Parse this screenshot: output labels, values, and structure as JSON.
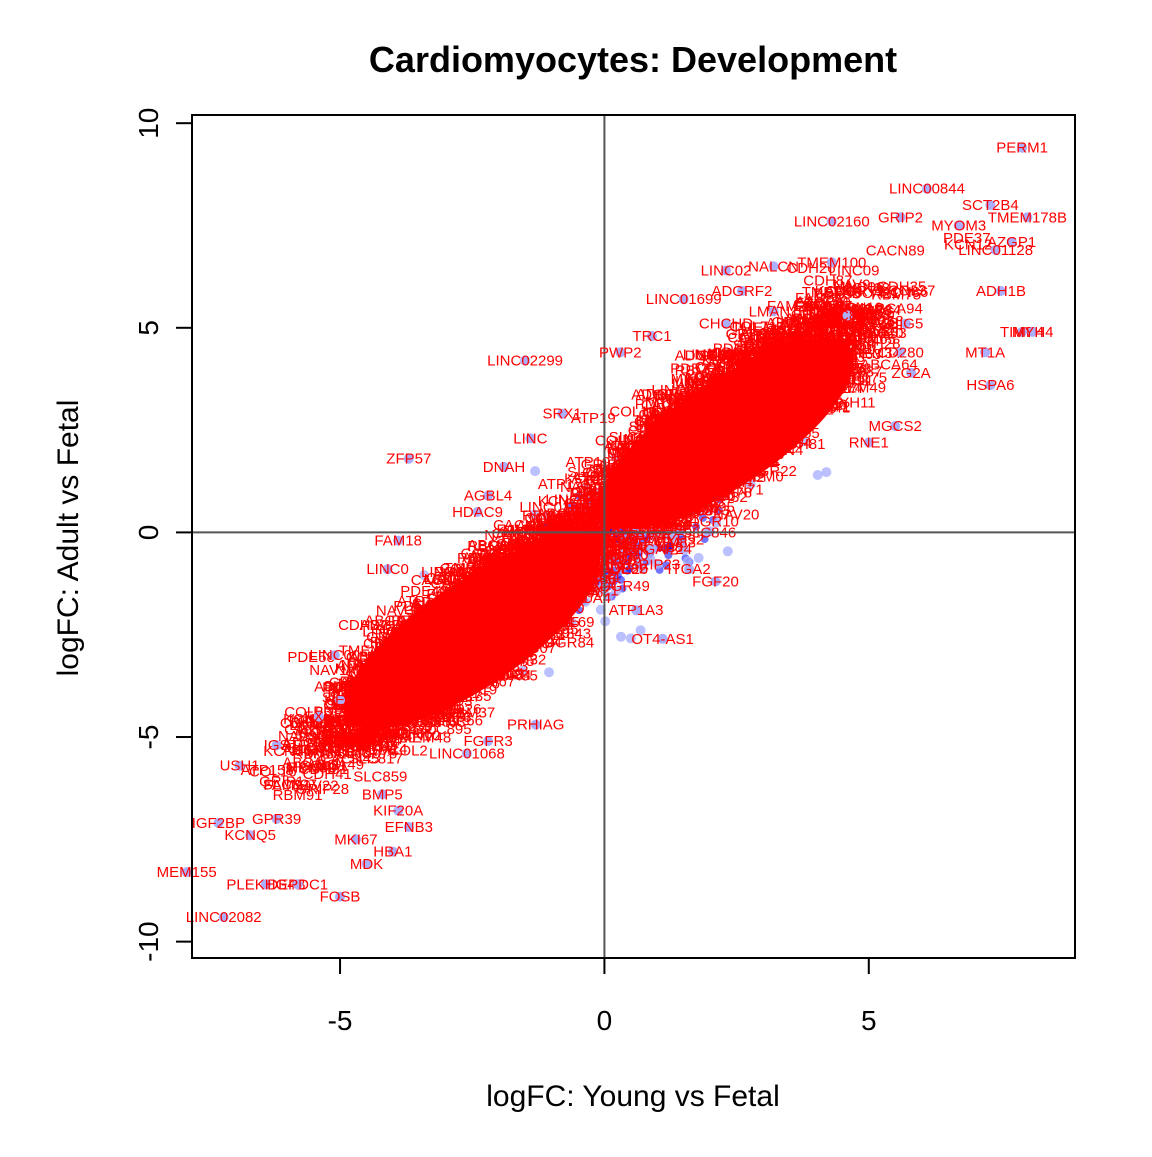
{
  "chart_data": {
    "type": "scatter",
    "title": "Cardiomyocytes: Development",
    "xlabel": "logFC: Young vs Fetal",
    "ylabel": "logFC: Adult vs Fetal",
    "xlim": [
      -7.8,
      8.9
    ],
    "ylim": [
      -10.4,
      10.2
    ],
    "x_ticks": [
      -5,
      0,
      5
    ],
    "x_tick_labels": [
      "-5",
      "0",
      "5"
    ],
    "y_ticks": [
      -10,
      -5,
      0,
      5,
      10
    ],
    "y_tick_labels": [
      "-10",
      "-5",
      "0",
      "5",
      "10"
    ],
    "reference_lines": {
      "x": 0,
      "y": 0
    },
    "grid": false,
    "colors": {
      "point": "#aab0ff",
      "point_dense": "#0000ff",
      "label": "#ff0000",
      "axis": "#000000",
      "refline": "#555555"
    },
    "labeled_points": [
      {
        "label": "PERM1",
        "x": 7.9,
        "y": 9.4
      },
      {
        "label": "LINC00844",
        "x": 6.1,
        "y": 8.4
      },
      {
        "label": "SCT2B4",
        "x": 7.3,
        "y": 8.0
      },
      {
        "label": "LINC02160",
        "x": 4.3,
        "y": 7.6
      },
      {
        "label": "GRIP2",
        "x": 5.6,
        "y": 7.7
      },
      {
        "label": "MYOM3",
        "x": 6.7,
        "y": 7.5
      },
      {
        "label": "TMEM178B",
        "x": 8.0,
        "y": 7.7
      },
      {
        "label": "AZGP1",
        "x": 7.7,
        "y": 7.1
      },
      {
        "label": "LINC01128",
        "x": 7.4,
        "y": 6.9
      },
      {
        "label": "LINC02",
        "x": 2.3,
        "y": 6.4
      },
      {
        "label": "NALCN",
        "x": 3.2,
        "y": 6.5
      },
      {
        "label": "TMEM100",
        "x": 4.3,
        "y": 6.6
      },
      {
        "label": "ADH1B",
        "x": 7.5,
        "y": 5.9
      },
      {
        "label": "ADGRF2",
        "x": 2.6,
        "y": 5.9
      },
      {
        "label": "LINC01699",
        "x": 1.5,
        "y": 5.7
      },
      {
        "label": "LMAN1",
        "x": 3.2,
        "y": 5.4
      },
      {
        "label": "CHCHD",
        "x": 2.3,
        "y": 5.1
      },
      {
        "label": "SLC8A1",
        "x": 4.6,
        "y": 5.3
      },
      {
        "label": "HIG5",
        "x": 5.7,
        "y": 5.1
      },
      {
        "label": "TIMP4",
        "x": 7.9,
        "y": 4.9
      },
      {
        "label": "MYH4",
        "x": 8.1,
        "y": 4.9
      },
      {
        "label": "TRC1",
        "x": 0.9,
        "y": 4.8
      },
      {
        "label": "PWP2",
        "x": 0.3,
        "y": 4.4
      },
      {
        "label": "LINC02299",
        "x": -1.5,
        "y": 4.2
      },
      {
        "label": "MT1A",
        "x": 7.2,
        "y": 4.4
      },
      {
        "label": "HSPA6",
        "x": 7.3,
        "y": 3.6
      },
      {
        "label": "CD280",
        "x": 5.6,
        "y": 4.4
      },
      {
        "label": "ZG2A",
        "x": 5.8,
        "y": 3.9
      },
      {
        "label": "MGCS2",
        "x": 5.5,
        "y": 2.6
      },
      {
        "label": "RNE1",
        "x": 5.0,
        "y": 2.2
      },
      {
        "label": "SRX1",
        "x": -0.8,
        "y": 2.9
      },
      {
        "label": "LINC",
        "x": -1.4,
        "y": 2.3
      },
      {
        "label": "ZFP57",
        "x": -3.7,
        "y": 1.8
      },
      {
        "label": "DNAH",
        "x": -1.9,
        "y": 1.6
      },
      {
        "label": "AGBL4",
        "x": -2.2,
        "y": 0.9
      },
      {
        "label": "HDAC9",
        "x": -2.4,
        "y": 0.5
      },
      {
        "label": "FAM18",
        "x": -3.9,
        "y": -0.2
      },
      {
        "label": "LINC0",
        "x": -4.1,
        "y": -0.9
      },
      {
        "label": "ARHGAP24",
        "x": 0.9,
        "y": -0.4
      },
      {
        "label": "ITGA2",
        "x": 1.6,
        "y": -0.9
      },
      {
        "label": "FGF20",
        "x": 2.1,
        "y": -1.2
      },
      {
        "label": "ATP1A3",
        "x": 0.6,
        "y": -1.9
      },
      {
        "label": "OT4-AS1",
        "x": 1.1,
        "y": -2.6
      },
      {
        "label": "LINC00",
        "x": -5.1,
        "y": -3.0
      },
      {
        "label": "HEC",
        "x": -5.0,
        "y": -4.1
      },
      {
        "label": "FXY",
        "x": -5.4,
        "y": -4.5
      },
      {
        "label": "PRHIAG",
        "x": -1.3,
        "y": -4.7
      },
      {
        "label": "FGFR3",
        "x": -2.2,
        "y": -5.1
      },
      {
        "label": "LINC01068",
        "x": -2.6,
        "y": -5.4
      },
      {
        "label": "IGS",
        "x": -6.2,
        "y": -5.2
      },
      {
        "label": "USH1",
        "x": -6.9,
        "y": -5.7
      },
      {
        "label": "BMP5",
        "x": -4.2,
        "y": -6.4
      },
      {
        "label": "KIF20A",
        "x": -3.9,
        "y": -6.8
      },
      {
        "label": "GPR39",
        "x": -6.2,
        "y": -7.0
      },
      {
        "label": "EFNB3",
        "x": -3.7,
        "y": -7.2
      },
      {
        "label": "MKI67",
        "x": -4.7,
        "y": -7.5
      },
      {
        "label": "IGF2BP",
        "x": -7.3,
        "y": -7.1
      },
      {
        "label": "KCNQ5",
        "x": -6.7,
        "y": -7.4
      },
      {
        "label": "HBA1",
        "x": -4.0,
        "y": -7.8
      },
      {
        "label": "MDK",
        "x": -4.5,
        "y": -8.1
      },
      {
        "label": "MEM155",
        "x": -7.9,
        "y": -8.3
      },
      {
        "label": "PLEKHG4B",
        "x": -6.4,
        "y": -8.6
      },
      {
        "label": "DEPDC1",
        "x": -5.8,
        "y": -8.6
      },
      {
        "label": "FOSB",
        "x": -5.0,
        "y": -8.9
      },
      {
        "label": "LINC02082",
        "x": -7.2,
        "y": -9.4
      }
    ]
  }
}
